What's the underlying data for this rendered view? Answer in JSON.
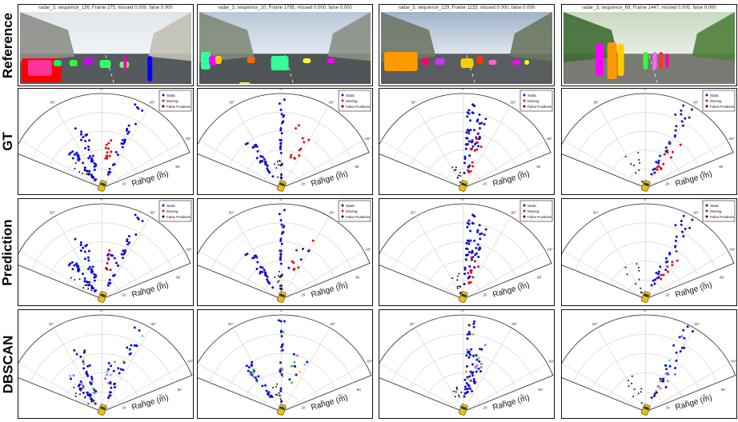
{
  "rows": [
    {
      "id": "reference",
      "label": "Reference"
    },
    {
      "id": "gt",
      "label": "GT"
    },
    {
      "id": "prediction",
      "label": "Prediction"
    },
    {
      "id": "dbscan",
      "label": "DBSCAN"
    }
  ],
  "columns": [
    {
      "title": "radar_3, sequence_136, Frame 275, missed 0.000, false 0.000",
      "scene": "street-buildings"
    },
    {
      "title": "radar_3, sequence_10, Frame 1785, missed 0.000, false 0.000",
      "scene": "road-open"
    },
    {
      "title": "radar_3, sequence_129, Frame 1133, missed 0.000, false 0.000",
      "scene": "road-cars"
    },
    {
      "title": "radar_3, sequence_69, Frame 1447, missed 0.000, false 0.000",
      "scene": "path-pedestrians"
    }
  ],
  "legend": {
    "static": "Static",
    "moving": "Moving",
    "false_positives": "False Positives"
  },
  "polar": {
    "range_label": "Range (m)",
    "range_ticks": [
      "20",
      "40",
      "60",
      "80",
      "100"
    ],
    "angle_ticks": [
      "-60°",
      "-30°",
      "0°",
      "30°",
      "60°"
    ]
  },
  "colors": {
    "static": "#1010d0",
    "moving": "#e01010",
    "false_positive": "#111111",
    "grid": "#d0d0d0",
    "car": "#f0c000",
    "cluster_palette": [
      "#ff9900",
      "#33cc33",
      "#66ccff",
      "#cc66cc",
      "#e0e000",
      "#999999",
      "#9966ff"
    ]
  }
}
